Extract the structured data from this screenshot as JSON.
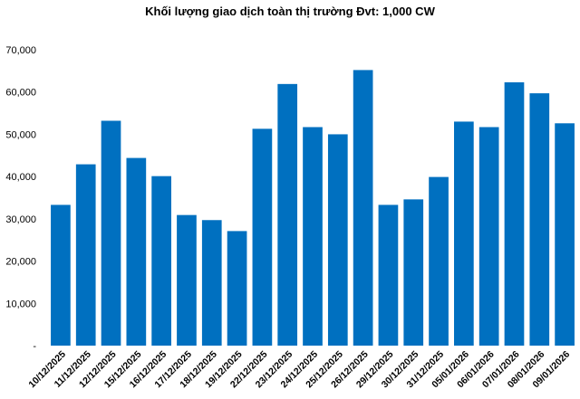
{
  "chart_data": {
    "type": "bar",
    "title": "Khối lượng giao dịch toàn thị trường Đvt: 1,000 CW",
    "categories": [
      "10/12/2025",
      "11/12/2025",
      "12/12/2025",
      "15/12/2025",
      "16/12/2025",
      "17/12/2025",
      "18/12/2025",
      "19/12/2025",
      "22/12/2025",
      "23/12/2025",
      "24/12/2025",
      "25/12/2025",
      "26/12/2025",
      "29/12/2025",
      "30/12/2025",
      "31/12/2025",
      "05/01/2026",
      "06/01/2026",
      "07/01/2026",
      "08/01/2026",
      "09/01/2026"
    ],
    "values": [
      33300,
      42900,
      53200,
      44400,
      40100,
      30900,
      29700,
      27100,
      51300,
      61900,
      51700,
      50000,
      65200,
      33300,
      34600,
      39900,
      53000,
      51700,
      62300,
      59700,
      52600
    ],
    "ylim": [
      0,
      70000
    ],
    "yticks": [
      "-",
      "10,000",
      "20,000",
      "30,000",
      "40,000",
      "50,000",
      "60,000",
      "70,000"
    ],
    "bar_color": "#0070c0",
    "grid": false,
    "legend": "none"
  }
}
